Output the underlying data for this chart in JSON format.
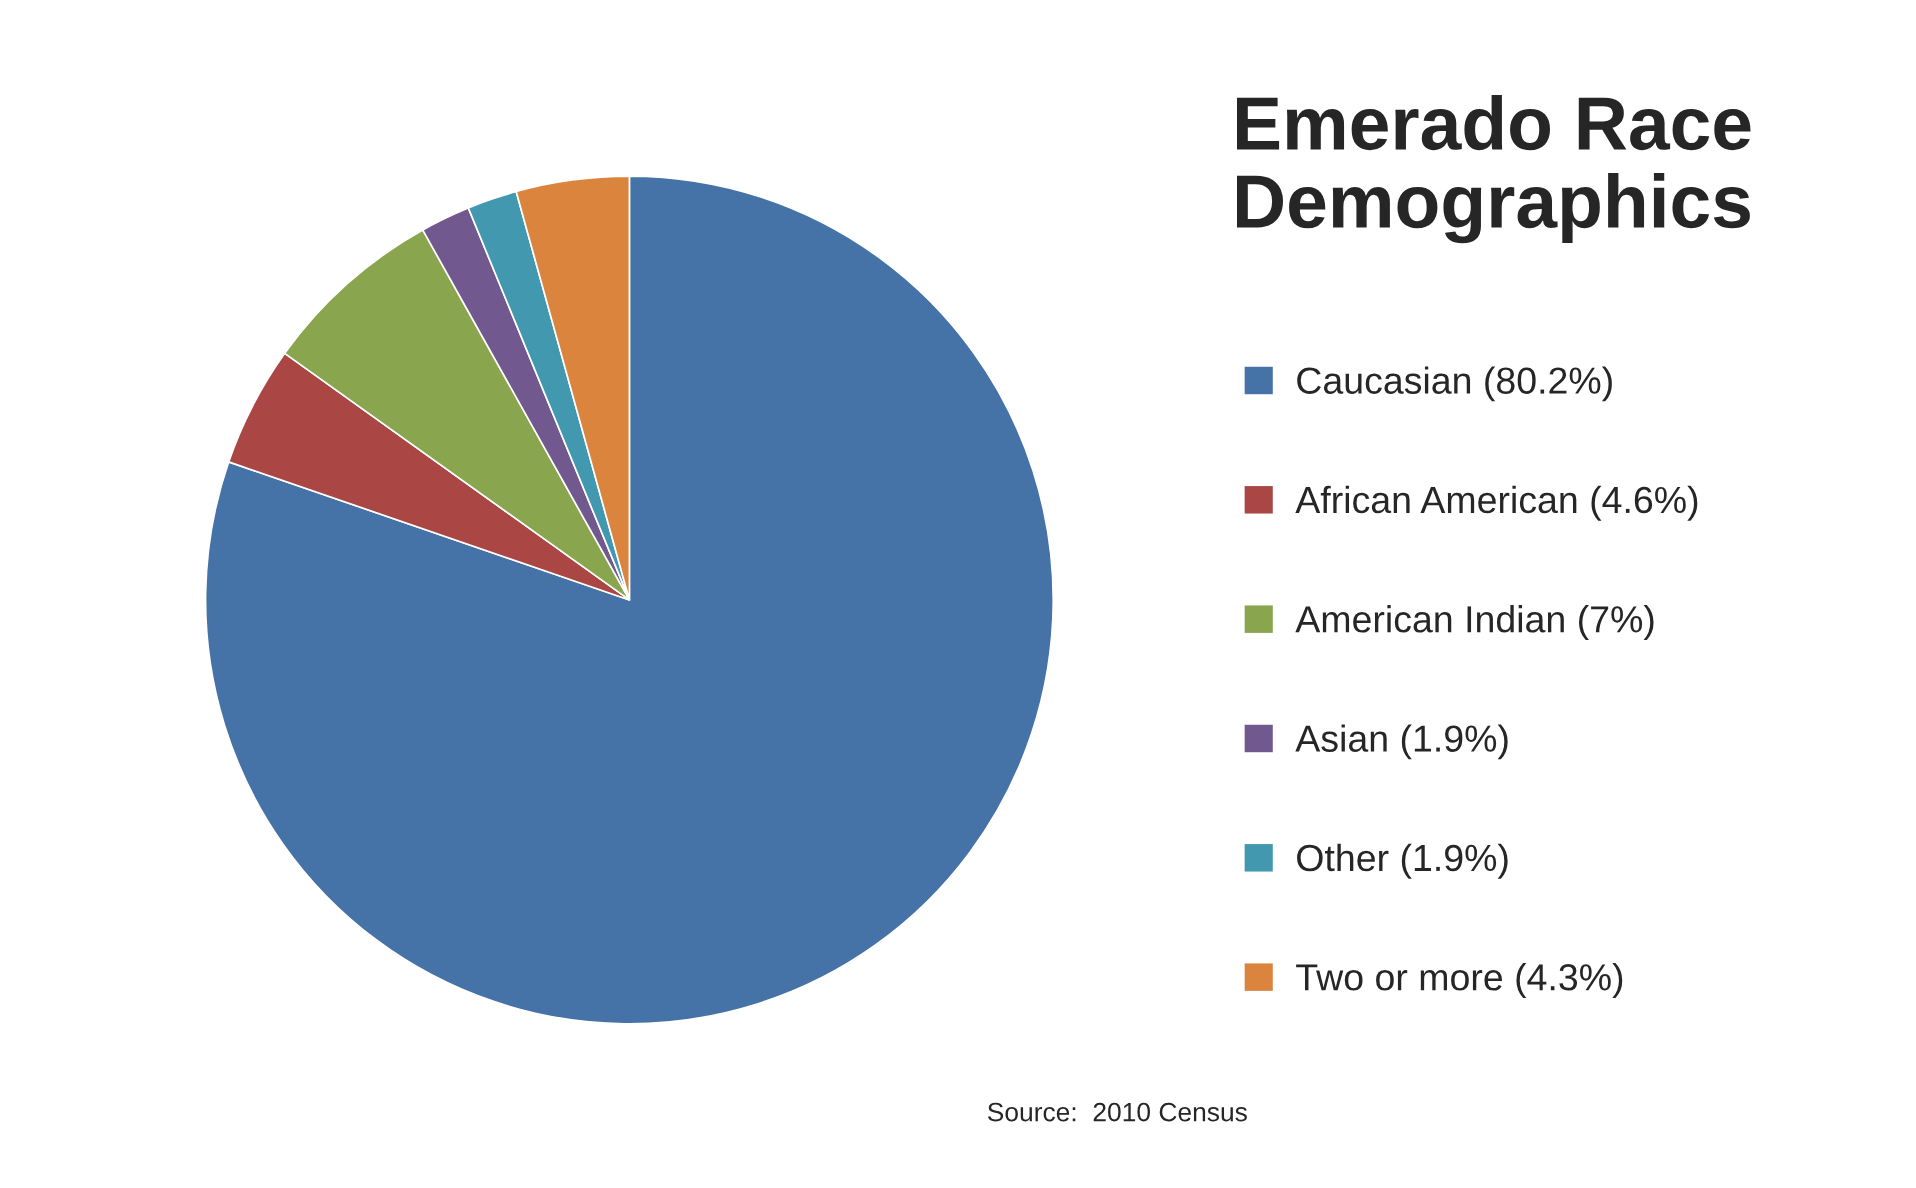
{
  "chart_data": {
    "type": "pie",
    "title": "Emerado Race Demographics",
    "categories": [
      "Caucasian (80.2%)",
      "African American (4.6%)",
      "American Indian (7%)",
      "Asian (1.9%)",
      "Other (1.9%)",
      "Two or more (4.3%)"
    ],
    "values": [
      80.2,
      4.6,
      7,
      1.9,
      1.9,
      4.3
    ],
    "colors": [
      "#4572a7",
      "#aa4643",
      "#89a54e",
      "#71588f",
      "#4198af",
      "#db843d"
    ],
    "legend": "right",
    "annotations": [
      "Source:  2010 Census"
    ]
  }
}
